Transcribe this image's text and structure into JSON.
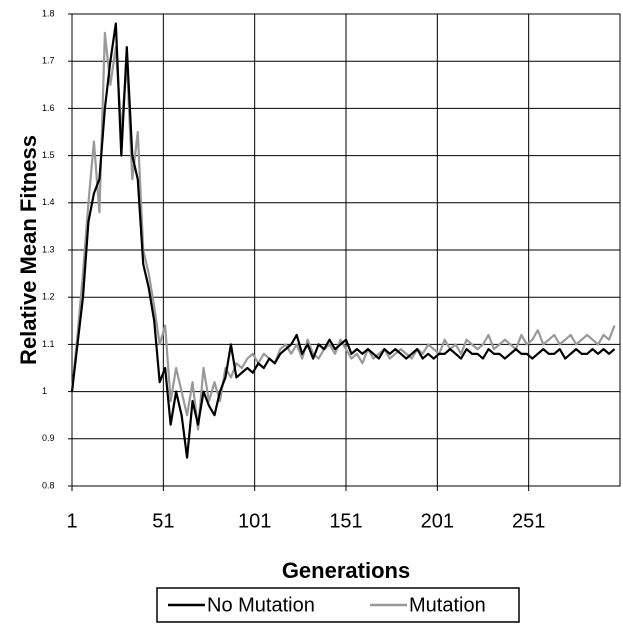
{
  "chart_data": {
    "type": "line",
    "x_label": "Generations",
    "y_label": "Relative Mean Fitness",
    "x": [
      1,
      4,
      7,
      10,
      13,
      16,
      19,
      22,
      25,
      28,
      31,
      34,
      37,
      40,
      43,
      46,
      49,
      52,
      55,
      58,
      61,
      64,
      67,
      70,
      73,
      76,
      79,
      82,
      85,
      88,
      91,
      94,
      97,
      100,
      103,
      106,
      109,
      112,
      115,
      118,
      121,
      124,
      127,
      130,
      133,
      136,
      139,
      142,
      145,
      148,
      151,
      154,
      157,
      160,
      163,
      166,
      169,
      172,
      175,
      178,
      181,
      184,
      187,
      190,
      193,
      196,
      199,
      202,
      205,
      208,
      211,
      214,
      217,
      220,
      223,
      226,
      229,
      232,
      235,
      238,
      241,
      244,
      247,
      250,
      253,
      256,
      259,
      262,
      265,
      268,
      271,
      274,
      277,
      280,
      283,
      286,
      289,
      292,
      295,
      298
    ],
    "series": [
      {
        "name": "No Mutation",
        "color": "#000000",
        "values": [
          1.0,
          1.1,
          1.2,
          1.36,
          1.42,
          1.45,
          1.6,
          1.7,
          1.78,
          1.5,
          1.73,
          1.5,
          1.45,
          1.27,
          1.22,
          1.15,
          1.02,
          1.05,
          0.93,
          1.0,
          0.95,
          0.86,
          0.98,
          0.93,
          1.0,
          0.97,
          0.95,
          1.0,
          1.03,
          1.1,
          1.03,
          1.04,
          1.05,
          1.04,
          1.06,
          1.05,
          1.07,
          1.06,
          1.08,
          1.09,
          1.1,
          1.12,
          1.08,
          1.1,
          1.07,
          1.1,
          1.09,
          1.11,
          1.09,
          1.1,
          1.11,
          1.08,
          1.09,
          1.08,
          1.09,
          1.08,
          1.07,
          1.09,
          1.08,
          1.09,
          1.08,
          1.07,
          1.08,
          1.09,
          1.07,
          1.08,
          1.07,
          1.08,
          1.08,
          1.09,
          1.08,
          1.07,
          1.09,
          1.08,
          1.08,
          1.07,
          1.09,
          1.08,
          1.08,
          1.07,
          1.08,
          1.09,
          1.08,
          1.08,
          1.07,
          1.08,
          1.09,
          1.08,
          1.08,
          1.09,
          1.07,
          1.08,
          1.09,
          1.08,
          1.08,
          1.09,
          1.08,
          1.09,
          1.08,
          1.09
        ]
      },
      {
        "name": "Mutation",
        "color": "#999999",
        "values": [
          1.0,
          1.12,
          1.25,
          1.4,
          1.53,
          1.38,
          1.76,
          1.65,
          1.73,
          1.55,
          1.7,
          1.45,
          1.55,
          1.3,
          1.25,
          1.18,
          1.1,
          1.14,
          0.98,
          1.05,
          1.0,
          0.95,
          1.02,
          0.92,
          1.05,
          0.98,
          1.02,
          0.98,
          1.05,
          1.03,
          1.06,
          1.05,
          1.07,
          1.08,
          1.06,
          1.08,
          1.07,
          1.06,
          1.09,
          1.1,
          1.08,
          1.1,
          1.07,
          1.11,
          1.08,
          1.07,
          1.09,
          1.1,
          1.08,
          1.11,
          1.09,
          1.07,
          1.08,
          1.06,
          1.09,
          1.07,
          1.08,
          1.09,
          1.07,
          1.08,
          1.09,
          1.08,
          1.07,
          1.09,
          1.08,
          1.1,
          1.09,
          1.08,
          1.11,
          1.09,
          1.1,
          1.08,
          1.11,
          1.1,
          1.09,
          1.1,
          1.12,
          1.09,
          1.1,
          1.11,
          1.1,
          1.09,
          1.12,
          1.1,
          1.11,
          1.13,
          1.1,
          1.11,
          1.12,
          1.1,
          1.11,
          1.12,
          1.1,
          1.11,
          1.12,
          1.11,
          1.1,
          1.12,
          1.11,
          1.14
        ]
      }
    ],
    "xlim": [
      1,
      301
    ],
    "xticks": [
      1,
      51,
      101,
      151,
      201,
      251
    ],
    "ylim": [
      0.8,
      1.8
    ],
    "yticks": [
      0.8,
      0.9,
      1,
      1.1,
      1.2,
      1.3,
      1.4,
      1.5,
      1.6,
      1.7,
      1.8
    ],
    "grid": true
  }
}
